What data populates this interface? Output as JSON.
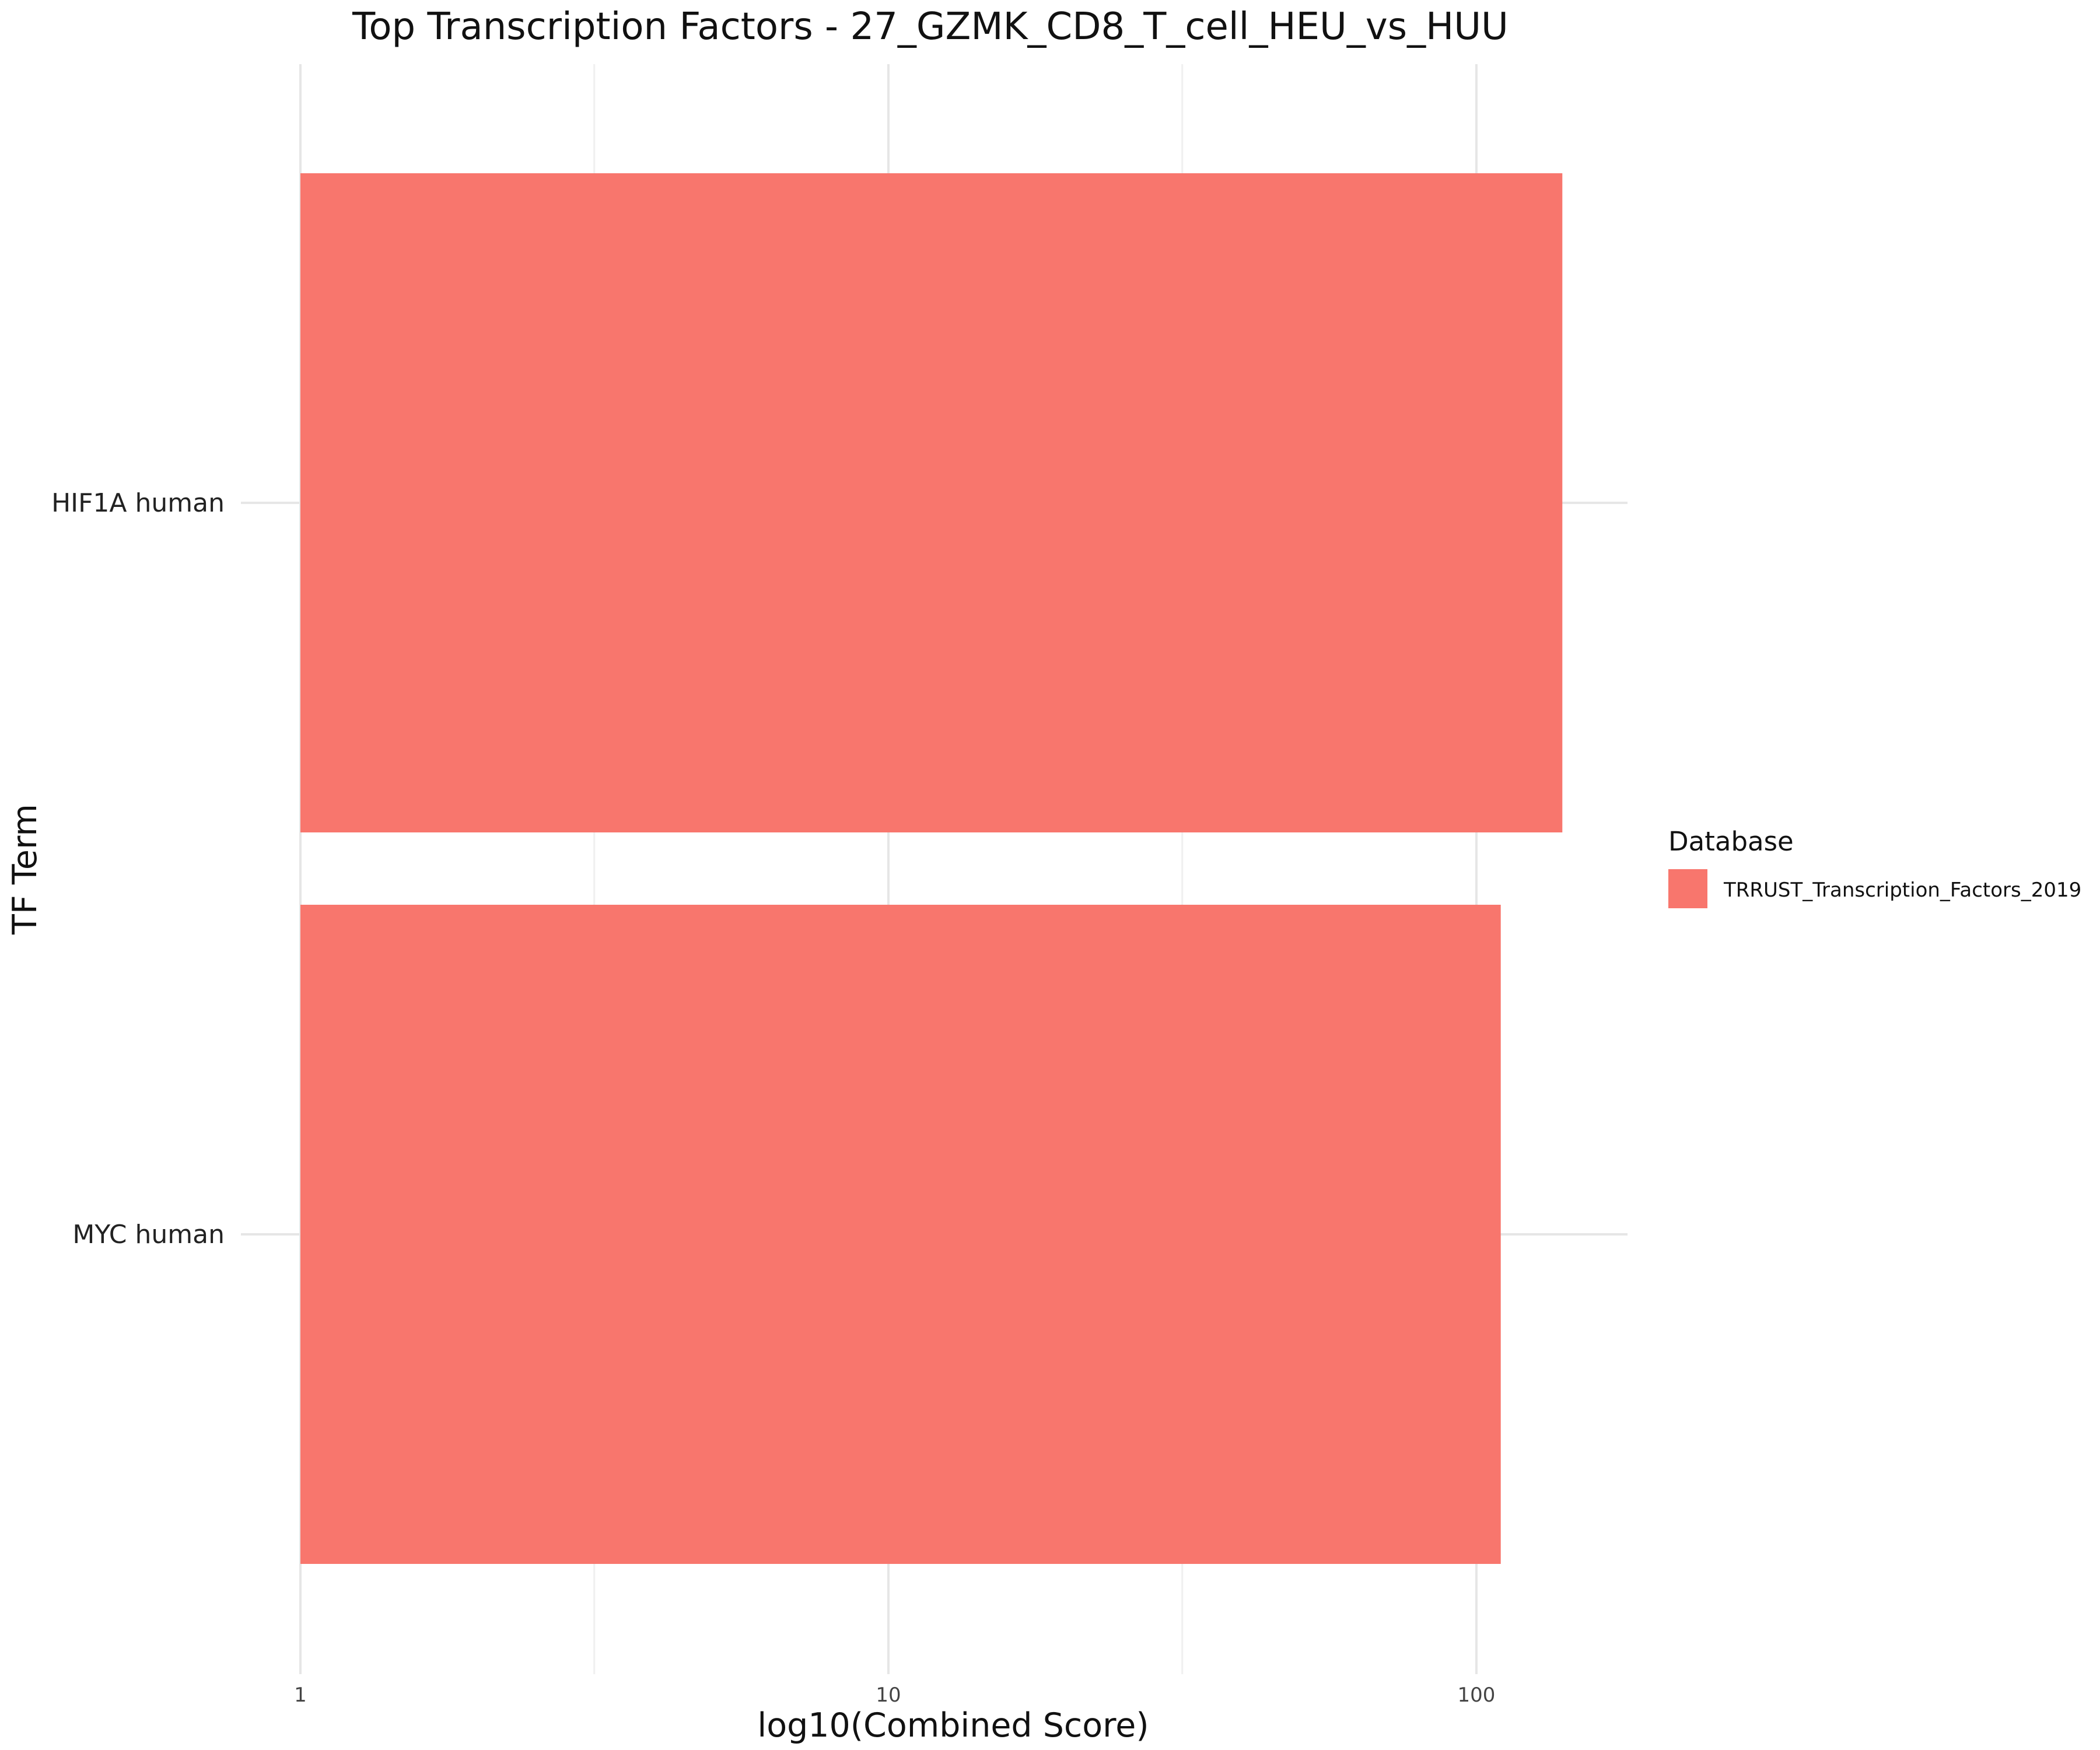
{
  "chart_data": {
    "type": "bar",
    "orientation": "horizontal",
    "title": "Top Transcription Factors - 27_GZMK_CD8_T_cell_HEU_vs_HUU",
    "xlabel": "log10(Combined Score)",
    "ylabel": "TF Term",
    "x_scale": "log10",
    "xlim": [
      1,
      180
    ],
    "x_ticks": [
      {
        "value": 1,
        "label": "1"
      },
      {
        "value": 10,
        "label": "10"
      },
      {
        "value": 100,
        "label": "100"
      }
    ],
    "x_minor_ticks": [
      3.16,
      31.6
    ],
    "grid": true,
    "categories": [
      "HIF1A human",
      "MYC human"
    ],
    "series": [
      {
        "name": "TRRUST_Transcription_Factors_2019",
        "values": [
          140,
          110
        ],
        "color": "#f8766d"
      }
    ],
    "legend": {
      "title": "Database",
      "position": "right"
    }
  }
}
